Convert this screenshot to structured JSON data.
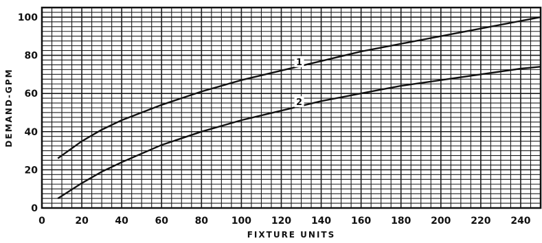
{
  "chart_data": {
    "type": "line",
    "xlabel": "FIXTURE UNITS",
    "ylabel": "DEMAND-GPM",
    "xlim": [
      0,
      250
    ],
    "ylim": [
      0,
      105
    ],
    "xticks": [
      "0",
      "20",
      "40",
      "60",
      "80",
      "100",
      "120",
      "140",
      "160",
      "180",
      "200",
      "220",
      "240"
    ],
    "yticks": [
      "0",
      "20",
      "40",
      "60",
      "80",
      "100"
    ],
    "grid": true,
    "series": [
      {
        "name": "1",
        "x": [
          8,
          20,
          30,
          40,
          60,
          80,
          100,
          120,
          140,
          160,
          180,
          200,
          220,
          240,
          250
        ],
        "values": [
          26,
          35,
          41,
          46,
          54,
          61,
          67,
          72,
          77,
          82,
          86,
          90,
          94,
          98,
          100
        ]
      },
      {
        "name": "2",
        "x": [
          8,
          20,
          30,
          40,
          60,
          80,
          100,
          120,
          140,
          160,
          180,
          200,
          220,
          240,
          250
        ],
        "values": [
          5,
          13,
          19,
          24,
          33,
          40,
          46,
          51,
          56,
          60,
          64,
          67,
          70,
          73,
          74
        ]
      }
    ],
    "colors": {
      "line": "#111111",
      "grid": "#1a1a1a",
      "background": "#ffffff"
    }
  }
}
